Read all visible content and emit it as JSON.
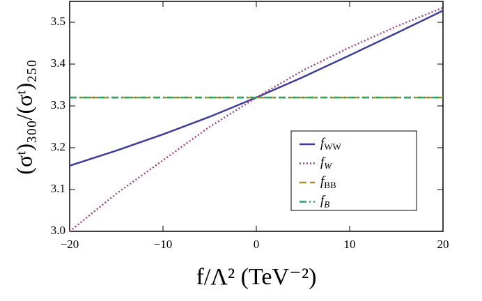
{
  "chart_data": {
    "type": "line",
    "x_label": "f/Λ² (TeV⁻²)",
    "y_label": "(σᵗ)₃₀₀/(σᵗ)₂₅₀",
    "x": [
      -20,
      -15,
      -10,
      -5,
      0,
      5,
      10,
      15,
      20
    ],
    "series": [
      {
        "name": "fWW",
        "color": "#3d3d99",
        "dash": "solid",
        "values": [
          3.157,
          3.193,
          3.232,
          3.274,
          3.32,
          3.369,
          3.421,
          3.474,
          3.528
        ]
      },
      {
        "name": "fW",
        "color": "#a2437c",
        "dash": "dotted",
        "values": [
          3.0,
          3.09,
          3.17,
          3.25,
          3.32,
          3.385,
          3.44,
          3.49,
          3.535
        ]
      },
      {
        "name": "fBB",
        "color": "#b08a30",
        "dash": "dashed",
        "values": [
          3.32,
          3.32,
          3.32,
          3.32,
          3.32,
          3.32,
          3.32,
          3.32,
          3.32
        ]
      },
      {
        "name": "fB",
        "color": "#2e9e62",
        "dash": "dashdot",
        "values": [
          3.32,
          3.32,
          3.32,
          3.32,
          3.32,
          3.32,
          3.32,
          3.32,
          3.32
        ]
      }
    ],
    "xlim": [
      -20,
      20
    ],
    "ylim": [
      3.0,
      3.55
    ],
    "xticks": [
      {
        "value": -20,
        "label": "−20"
      },
      {
        "value": -10,
        "label": "−10"
      },
      0,
      10,
      20
    ],
    "yticks": [
      {
        "value": 3.0,
        "label": "3.0"
      },
      3.1,
      3.2,
      3.3,
      3.4,
      3.5
    ],
    "legend": "lower right"
  }
}
